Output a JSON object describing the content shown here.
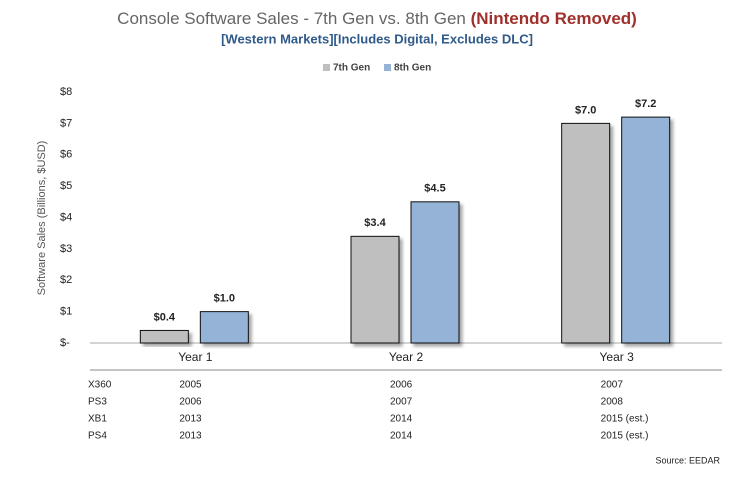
{
  "chart_data": {
    "type": "bar",
    "title": "Console Software Sales - 7th Gen vs. 8th Gen",
    "title_note": "(Nintendo Removed)",
    "subtitle": "[Western Markets][Includes Digital, Excludes DLC]",
    "ylabel": "Software Sales (Billions, $USD)",
    "categories": [
      "Year 1",
      "Year 2",
      "Year 3"
    ],
    "series": [
      {
        "name": "7th Gen",
        "color": "#bfbfbf",
        "values": [
          0.4,
          3.4,
          7.0
        ],
        "value_labels": [
          "$0.4",
          "$3.4",
          "$7.0"
        ]
      },
      {
        "name": "8th Gen",
        "color": "#95b3d7",
        "values": [
          1.0,
          4.5,
          7.2
        ],
        "value_labels": [
          "$1.0",
          "$4.5",
          "$7.2"
        ]
      }
    ],
    "ylim": [
      0,
      8
    ],
    "yticks": [
      {
        "value": 0,
        "label": "$-"
      },
      {
        "value": 1,
        "label": "$1"
      },
      {
        "value": 2,
        "label": "$2"
      },
      {
        "value": 3,
        "label": "$3"
      },
      {
        "value": 4,
        "label": "$4"
      },
      {
        "value": 5,
        "label": "$5"
      },
      {
        "value": 6,
        "label": "$6"
      },
      {
        "value": 7,
        "label": "$7"
      },
      {
        "value": 8,
        "label": "$8"
      }
    ],
    "legend": "top",
    "table": {
      "rows": [
        [
          "X360",
          "2005",
          "2006",
          "2007"
        ],
        [
          "PS3",
          "2006",
          "2007",
          "2008"
        ],
        [
          "XB1",
          "2013",
          "2014",
          "2015 (est.)"
        ],
        [
          "PS4",
          "2013",
          "2014",
          "2015 (est.)"
        ]
      ]
    },
    "source": "Source: EEDAR"
  }
}
